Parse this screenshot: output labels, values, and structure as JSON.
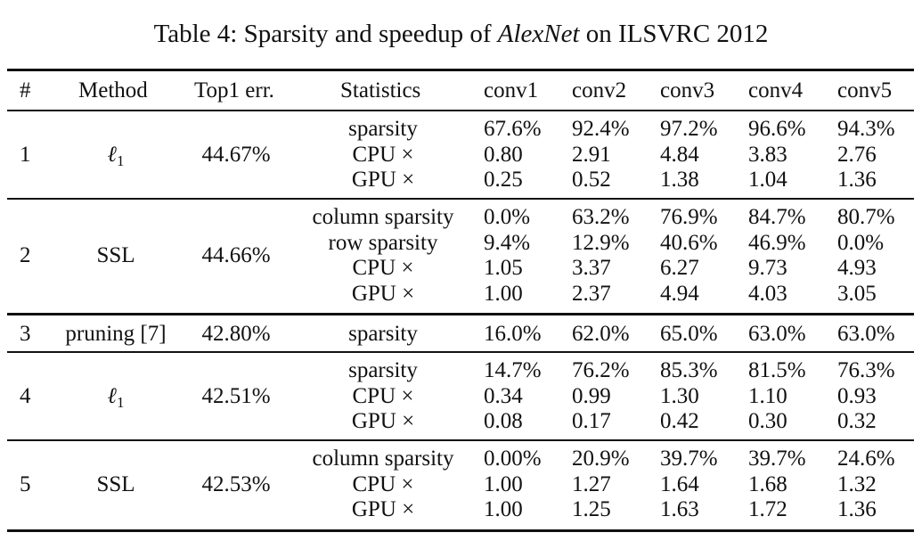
{
  "caption": {
    "prefix": "Table 4: Sparsity and speedup of ",
    "model": "AlexNet",
    "suffix": " on ILSVRC 2012"
  },
  "headers": [
    "#",
    "Method",
    "Top1 err.",
    "Statistics",
    "conv1",
    "conv2",
    "conv3",
    "conv4",
    "conv5"
  ],
  "rows": [
    {
      "num": "1",
      "method": "ℓ1",
      "top1": "44.67%",
      "stats": [
        {
          "label": "sparsity",
          "values": [
            "67.6%",
            "92.4%",
            "97.2%",
            "96.6%",
            "94.3%"
          ]
        },
        {
          "label": "CPU ×",
          "values": [
            "0.80",
            "2.91",
            "4.84",
            "3.83",
            "2.76"
          ]
        },
        {
          "label": "GPU ×",
          "values": [
            "0.25",
            "0.52",
            "1.38",
            "1.04",
            "1.36"
          ]
        }
      ]
    },
    {
      "num": "2",
      "method": "SSL",
      "top1": "44.66%",
      "stats": [
        {
          "label": "column sparsity",
          "values": [
            "0.0%",
            "63.2%",
            "76.9%",
            "84.7%",
            "80.7%"
          ]
        },
        {
          "label": "row sparsity",
          "values": [
            "9.4%",
            "12.9%",
            "40.6%",
            "46.9%",
            "0.0%"
          ]
        },
        {
          "label": "CPU ×",
          "values": [
            "1.05",
            "3.37",
            "6.27",
            "9.73",
            "4.93"
          ]
        },
        {
          "label": "GPU ×",
          "values": [
            "1.00",
            "2.37",
            "4.94",
            "4.03",
            "3.05"
          ]
        }
      ]
    },
    {
      "num": "3",
      "method": "pruning [7]",
      "top1": "42.80%",
      "stats": [
        {
          "label": "sparsity",
          "values": [
            "16.0%",
            "62.0%",
            "65.0%",
            "63.0%",
            "63.0%"
          ]
        }
      ]
    },
    {
      "num": "4",
      "method": "ℓ1",
      "top1": "42.51%",
      "stats": [
        {
          "label": "sparsity",
          "values": [
            "14.7%",
            "76.2%",
            "85.3%",
            "81.5%",
            "76.3%"
          ]
        },
        {
          "label": "CPU ×",
          "values": [
            "0.34",
            "0.99",
            "1.30",
            "1.10",
            "0.93"
          ]
        },
        {
          "label": "GPU ×",
          "values": [
            "0.08",
            "0.17",
            "0.42",
            "0.30",
            "0.32"
          ]
        }
      ]
    },
    {
      "num": "5",
      "method": "SSL",
      "top1": "42.53%",
      "stats": [
        {
          "label": "column sparsity",
          "values": [
            "0.00%",
            "20.9%",
            "39.7%",
            "39.7%",
            "24.6%"
          ]
        },
        {
          "label": "CPU ×",
          "values": [
            "1.00",
            "1.27",
            "1.64",
            "1.68",
            "1.32"
          ]
        },
        {
          "label": "GPU ×",
          "values": [
            "1.00",
            "1.25",
            "1.63",
            "1.72",
            "1.36"
          ]
        }
      ]
    }
  ]
}
